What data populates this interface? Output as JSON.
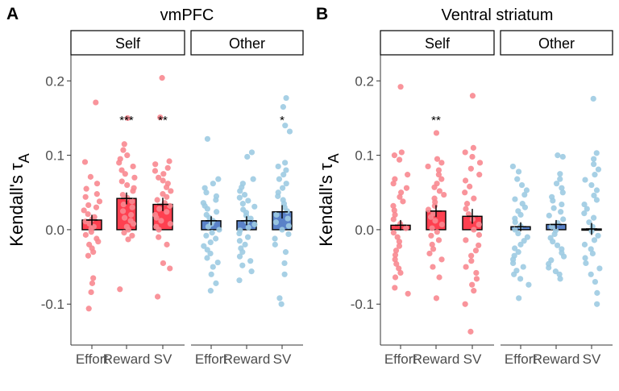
{
  "chart_data": [
    {
      "type": "bar",
      "panel_letter": "A",
      "title": "vmPFC",
      "ylabel": "Kendall's τA",
      "ylabel_main": "Kendall's",
      "ylabel_symbol": "τ",
      "ylabel_sub": "A",
      "ylim": [
        -0.155,
        0.235
      ],
      "yticks": [
        -0.1,
        0.0,
        0.1,
        0.2
      ],
      "ytick_labels": [
        "-0.1",
        "0.0",
        "0.1",
        "0.2"
      ],
      "grid": false,
      "facets": [
        {
          "label": "Self",
          "bar_color": "#ff4050",
          "point_color": "#f88890",
          "categories": [
            "Effort",
            "Reward",
            "SV"
          ],
          "means": [
            0.013,
            0.042,
            0.034
          ],
          "se": [
            0.007,
            0.008,
            0.009
          ],
          "significance": [
            "",
            "***",
            "**"
          ],
          "points": [
            [
              0.171,
              0.091,
              0.071,
              0.062,
              0.055,
              0.048,
              0.044,
              0.038,
              0.033,
              0.03,
              0.026,
              0.021,
              0.017,
              0.014,
              0.011,
              0.008,
              0.004,
              0.001,
              -0.003,
              -0.007,
              -0.012,
              -0.016,
              -0.02,
              -0.025,
              -0.03,
              -0.035,
              -0.065,
              -0.072,
              -0.084,
              -0.106
            ],
            [
              0.15,
              0.115,
              0.107,
              0.1,
              0.095,
              0.09,
              0.085,
              0.08,
              0.075,
              0.07,
              0.065,
              0.06,
              0.056,
              0.052,
              0.047,
              0.043,
              0.038,
              0.034,
              0.03,
              0.025,
              0.02,
              0.016,
              0.012,
              0.008,
              0.004,
              0.0,
              -0.004,
              -0.008,
              -0.013,
              -0.08
            ],
            [
              0.204,
              0.151,
              0.092,
              0.088,
              0.083,
              0.079,
              0.075,
              0.07,
              0.066,
              0.062,
              0.057,
              0.052,
              0.048,
              0.044,
              0.04,
              0.036,
              0.032,
              0.028,
              0.024,
              0.02,
              0.016,
              0.012,
              0.008,
              0.004,
              0.0,
              -0.01,
              -0.02,
              -0.045,
              -0.052,
              -0.09
            ]
          ]
        },
        {
          "label": "Other",
          "bar_color": "#5a82c8",
          "point_color": "#9dcbe2",
          "categories": [
            "Effort",
            "Reward",
            "SV"
          ],
          "means": [
            0.012,
            0.012,
            0.024
          ],
          "se": [
            0.006,
            0.006,
            0.009
          ],
          "significance": [
            "",
            "",
            "*"
          ],
          "points": [
            [
              0.122,
              0.068,
              0.062,
              0.056,
              0.05,
              0.045,
              0.04,
              0.036,
              0.032,
              0.028,
              0.024,
              0.02,
              0.016,
              0.012,
              0.008,
              0.004,
              0.0,
              -0.004,
              -0.008,
              -0.012,
              -0.017,
              -0.022,
              -0.027,
              -0.032,
              -0.038,
              -0.044,
              -0.05,
              -0.06,
              -0.072,
              -0.082
            ],
            [
              0.104,
              0.098,
              0.068,
              0.062,
              0.057,
              0.052,
              0.047,
              0.043,
              0.039,
              0.035,
              0.031,
              0.027,
              0.023,
              0.019,
              0.015,
              0.011,
              0.007,
              0.003,
              -0.001,
              -0.005,
              -0.01,
              -0.015,
              -0.02,
              -0.025,
              -0.03,
              -0.036,
              -0.042,
              -0.048,
              -0.056,
              -0.068
            ],
            [
              0.177,
              0.165,
              0.14,
              0.132,
              0.09,
              0.085,
              0.08,
              0.074,
              0.068,
              0.062,
              0.056,
              0.05,
              0.045,
              0.04,
              0.035,
              0.03,
              0.025,
              0.02,
              0.015,
              0.01,
              0.005,
              0.0,
              -0.006,
              -0.012,
              -0.02,
              -0.03,
              -0.045,
              -0.06,
              -0.092,
              -0.1
            ]
          ]
        }
      ]
    },
    {
      "type": "bar",
      "panel_letter": "B",
      "title": "Ventral striatum",
      "ylabel": "Kendall's τA",
      "ylabel_main": "Kendall's",
      "ylabel_symbol": "τ",
      "ylabel_sub": "A",
      "ylim": [
        -0.155,
        0.235
      ],
      "yticks": [
        -0.1,
        0.0,
        0.1,
        0.2
      ],
      "ytick_labels": [
        "-0.1",
        "0.0",
        "0.1",
        "0.2"
      ],
      "grid": false,
      "facets": [
        {
          "label": "Self",
          "bar_color": "#ff4050",
          "point_color": "#f88890",
          "categories": [
            "Effort",
            "Reward",
            "SV"
          ],
          "means": [
            0.006,
            0.025,
            0.018
          ],
          "se": [
            0.007,
            0.008,
            0.01
          ],
          "significance": [
            "",
            "**",
            ""
          ],
          "points": [
            [
              0.192,
              0.104,
              0.1,
              0.094,
              0.074,
              0.068,
              0.062,
              0.056,
              0.05,
              0.044,
              0.038,
              0.032,
              0.026,
              0.02,
              0.014,
              0.008,
              0.002,
              -0.004,
              -0.01,
              -0.016,
              -0.022,
              -0.028,
              -0.034,
              -0.04,
              -0.046,
              -0.052,
              -0.058,
              -0.064,
              -0.078,
              -0.086
            ],
            [
              0.13,
              0.095,
              0.09,
              0.085,
              0.08,
              0.074,
              0.068,
              0.062,
              0.057,
              0.052,
              0.047,
              0.042,
              0.037,
              0.032,
              0.027,
              0.022,
              0.017,
              0.012,
              0.007,
              0.002,
              -0.003,
              -0.008,
              -0.014,
              -0.02,
              -0.026,
              -0.032,
              -0.04,
              -0.05,
              -0.064,
              -0.092
            ],
            [
              0.18,
              0.11,
              0.104,
              0.098,
              0.09,
              0.082,
              0.074,
              0.066,
              0.058,
              0.05,
              0.042,
              0.035,
              0.028,
              0.021,
              0.014,
              0.007,
              0.0,
              -0.007,
              -0.014,
              -0.021,
              -0.028,
              -0.035,
              -0.042,
              -0.05,
              -0.058,
              -0.066,
              -0.074,
              -0.082,
              -0.1,
              -0.137
            ]
          ]
        },
        {
          "label": "Other",
          "bar_color": "#5a82c8",
          "point_color": "#9dcbe2",
          "categories": [
            "Effort",
            "Reward",
            "SV"
          ],
          "means": [
            0.004,
            0.007,
            0.001
          ],
          "se": [
            0.006,
            0.006,
            0.008
          ],
          "significance": [
            "",
            "",
            ""
          ],
          "points": [
            [
              0.085,
              0.078,
              0.068,
              0.06,
              0.053,
              0.047,
              0.041,
              0.035,
              0.03,
              0.025,
              0.02,
              0.015,
              0.01,
              0.005,
              0.0,
              -0.005,
              -0.01,
              -0.015,
              -0.02,
              -0.025,
              -0.03,
              -0.035,
              -0.04,
              -0.045,
              -0.05,
              -0.055,
              -0.06,
              -0.066,
              -0.074,
              -0.092
            ],
            [
              0.1,
              0.098,
              0.075,
              0.068,
              0.062,
              0.056,
              0.05,
              0.044,
              0.039,
              0.034,
              0.029,
              0.024,
              0.019,
              0.014,
              0.009,
              0.004,
              -0.001,
              -0.006,
              -0.011,
              -0.016,
              -0.021,
              -0.026,
              -0.031,
              -0.036,
              -0.041,
              -0.046,
              -0.051,
              -0.056,
              -0.06,
              -0.066
            ],
            [
              0.176,
              0.103,
              0.095,
              0.088,
              0.081,
              0.074,
              0.067,
              0.06,
              0.053,
              0.046,
              0.04,
              0.034,
              0.028,
              0.022,
              0.016,
              0.01,
              0.004,
              -0.002,
              -0.008,
              -0.014,
              -0.02,
              -0.026,
              -0.032,
              -0.038,
              -0.045,
              -0.052,
              -0.06,
              -0.07,
              -0.085,
              -0.1
            ]
          ]
        }
      ]
    }
  ]
}
